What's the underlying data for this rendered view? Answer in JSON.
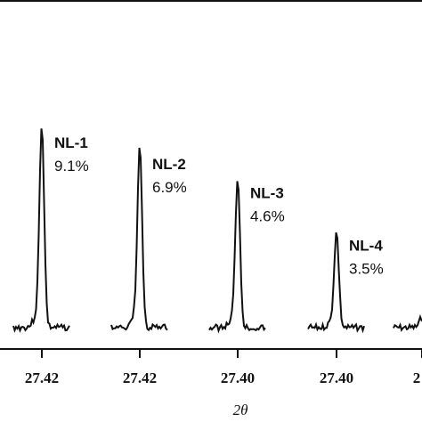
{
  "chart_data": {
    "type": "line",
    "xlabel": "2θ",
    "ylabel": "",
    "title": "",
    "grid": false,
    "series": [
      {
        "name": "NL-1",
        "annotation": "9.1%",
        "tick": "27.42",
        "relative_peak_height": 1.0
      },
      {
        "name": "NL-2",
        "annotation": "6.9%",
        "tick": "27.42",
        "relative_peak_height": 0.89
      },
      {
        "name": "NL-3",
        "annotation": "4.6%",
        "tick": "27.40",
        "relative_peak_height": 0.74
      },
      {
        "name": "NL-4",
        "annotation": "3.5%",
        "tick": "27.40",
        "relative_peak_height": 0.47
      },
      {
        "name": "",
        "annotation": "",
        "tick": "2",
        "relative_peak_height": 0.05
      }
    ]
  },
  "colors": {
    "line": "#111111",
    "axis": "#111111"
  }
}
